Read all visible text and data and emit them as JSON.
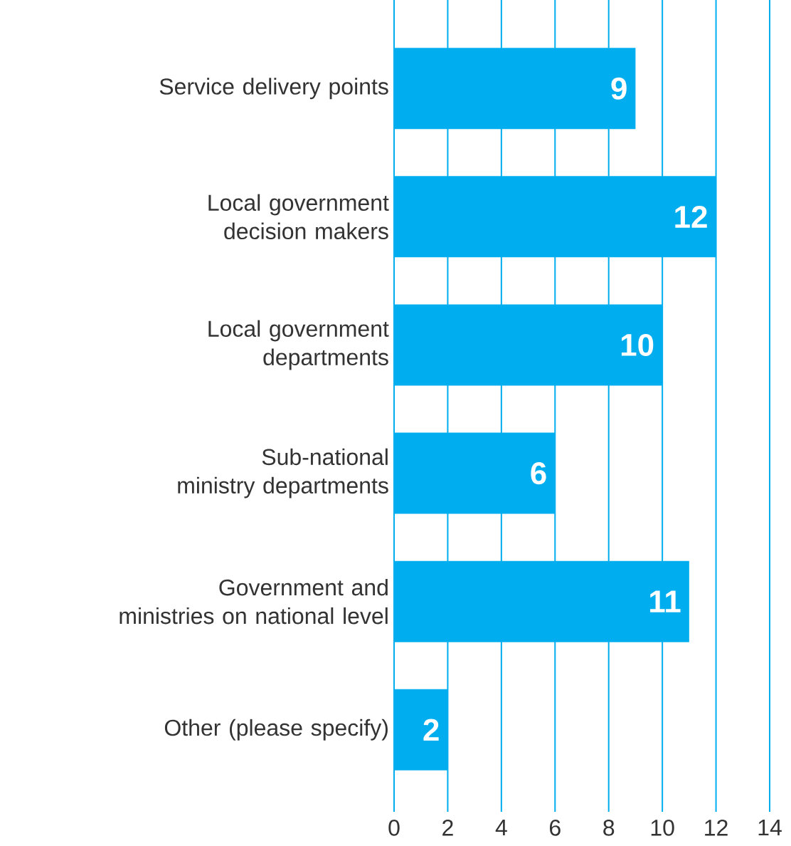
{
  "chart_data": {
    "type": "bar",
    "orientation": "horizontal",
    "categories": [
      "Service delivery points",
      "Local government decision makers",
      "Local government departments",
      "Sub-national ministry departments",
      "Government and ministries on national level",
      "Other (please specify)"
    ],
    "values": [
      9,
      12,
      10,
      6,
      11,
      2
    ],
    "color": "#00aeef",
    "data_labels": true,
    "grid": "x",
    "xlim": [
      0,
      14
    ],
    "xticks": [
      0,
      2,
      4,
      6,
      8,
      10,
      12,
      14
    ]
  }
}
